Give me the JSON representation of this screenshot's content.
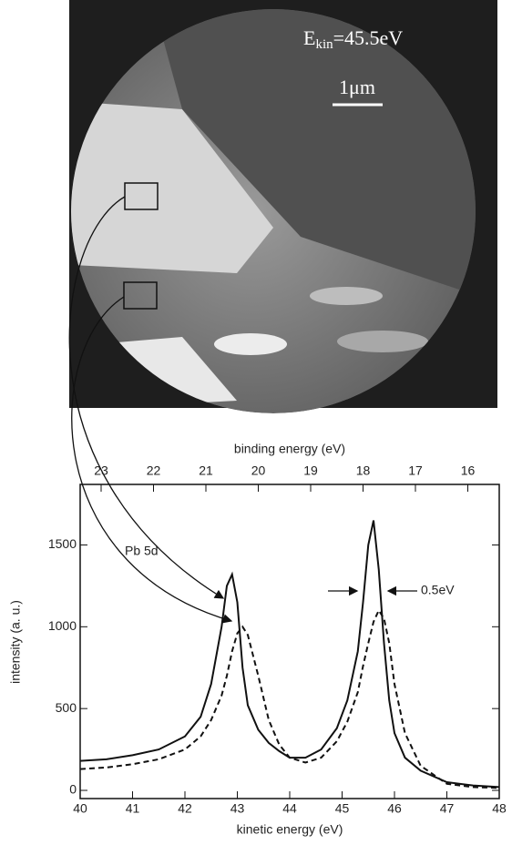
{
  "chart_data": {
    "type": "line",
    "micrograph": {
      "energy_symbol": "E",
      "energy_subscript": "kin",
      "energy_value": "=45.5eV",
      "scale_bar": "1μm"
    },
    "xlabel": "kinetic energy (eV)",
    "ylabel": "intensity (a. u.)",
    "x2label": "binding energy (eV)",
    "annotations": [
      "Pb 5d",
      "0.5eV"
    ],
    "x": [
      40,
      40.5,
      41,
      41.5,
      42,
      42.3,
      42.5,
      42.7,
      42.8,
      42.9,
      43.0,
      43.1,
      43.2,
      43.4,
      43.6,
      43.8,
      44.0,
      44.3,
      44.6,
      44.9,
      45.1,
      45.3,
      45.4,
      45.5,
      45.6,
      45.7,
      45.8,
      45.9,
      46.0,
      46.2,
      46.5,
      47.0,
      47.5,
      48.0
    ],
    "series": [
      {
        "color": "#111111",
        "dashed": false,
        "values": [
          180,
          190,
          215,
          250,
          330,
          450,
          650,
          1000,
          1250,
          1320,
          1150,
          750,
          520,
          370,
          290,
          240,
          200,
          200,
          250,
          380,
          550,
          850,
          1150,
          1500,
          1650,
          1350,
          900,
          550,
          350,
          200,
          120,
          50,
          30,
          20
        ]
      },
      {
        "color": "#111111",
        "dashed": true,
        "values": [
          130,
          140,
          160,
          190,
          250,
          330,
          430,
          580,
          700,
          850,
          960,
          1000,
          950,
          700,
          430,
          280,
          200,
          170,
          200,
          300,
          420,
          600,
          760,
          900,
          1030,
          1100,
          1050,
          900,
          650,
          350,
          150,
          40,
          20,
          15
        ]
      }
    ],
    "xlim": [
      40,
      48
    ],
    "xticks": [
      40,
      41,
      42,
      43,
      44,
      45,
      46,
      47,
      48
    ],
    "ylim": [
      -50,
      1870
    ],
    "yticks": [
      0,
      500,
      1000,
      1500
    ],
    "x2lim": [
      23.4,
      15.4
    ],
    "x2ticks": [
      23,
      22,
      21,
      20,
      19,
      18,
      17,
      16
    ]
  }
}
